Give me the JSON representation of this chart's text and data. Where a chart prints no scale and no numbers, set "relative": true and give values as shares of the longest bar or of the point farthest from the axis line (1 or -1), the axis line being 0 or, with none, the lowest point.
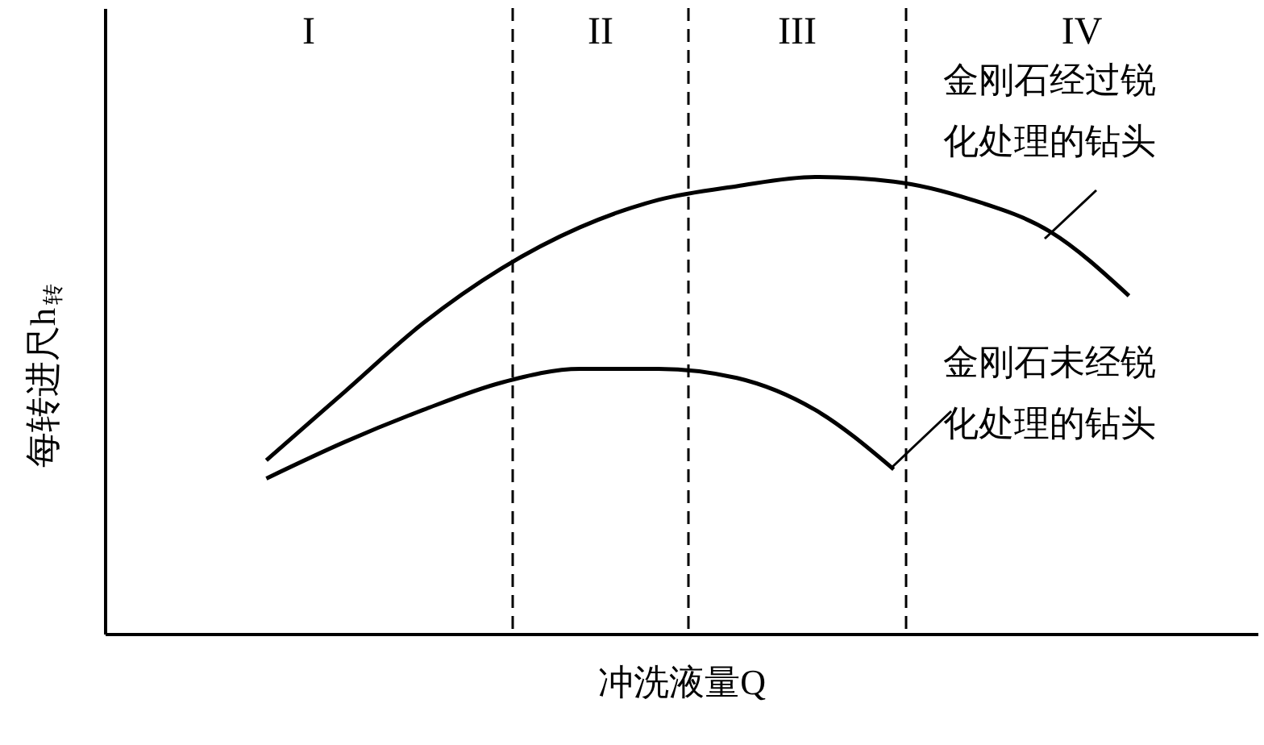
{
  "chart_data": {
    "type": "line",
    "relative": true,
    "xlabel": "冲洗液量Q",
    "ylabel": "每转进尺h$_{转}$",
    "categories": [
      null,
      null,
      null,
      null,
      null,
      null,
      null,
      null,
      null,
      null,
      null,
      null
    ],
    "series": [
      {
        "name": "金刚石经过锐化处理的钻头",
        "color": "#000000",
        "values": [
          0.38,
          0.53,
          0.68,
          0.8,
          0.89,
          0.95,
          0.98,
          1.0,
          0.99,
          0.95,
          0.88,
          0.74
        ]
      },
      {
        "name": "金刚石未经锐化处理的钻头",
        "color": "#000000",
        "values": [
          0.34,
          0.42,
          0.49,
          0.55,
          0.58,
          0.58,
          0.56,
          0.49,
          0.36,
          null,
          null,
          null
        ]
      }
    ],
    "annotations": [
      "I",
      "II",
      "III",
      "IV"
    ],
    "grid": false,
    "marker": "none",
    "line_style": "solid"
  }
}
